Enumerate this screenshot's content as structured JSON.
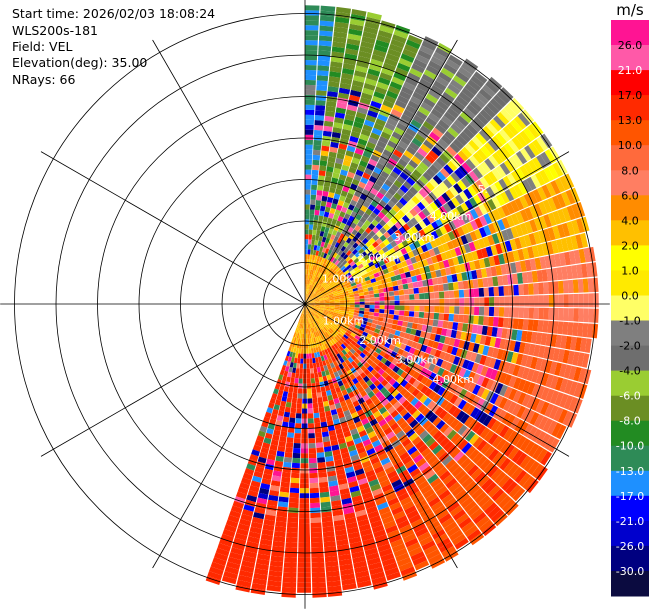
{
  "header": {
    "start_time": "Start time: 2026/02/03 18:08:24",
    "instrument": "WLS200s-181",
    "field": "Field: VEL",
    "elevation": "Elevation(deg): 35.00",
    "nrays": "NRays: 66"
  },
  "chart_data": {
    "type": "heatmap",
    "projection": "polar-ppi",
    "title": "",
    "field": "VEL",
    "elevation_deg": 35.0,
    "n_rays": 66,
    "range_rings_km": [
      1,
      2,
      3,
      4,
      5
    ],
    "range_ring_labels": [
      "1.00km",
      "2.00km",
      "3.00km",
      "4.00km"
    ],
    "range_ring_label_partial": "5.",
    "spokes_deg": [
      0,
      30,
      60,
      90,
      120,
      150,
      180,
      210,
      240,
      270,
      300,
      330
    ],
    "azimuth_coverage_deg": [
      0,
      200
    ],
    "max_range_km": 7.2,
    "dominant_velocity_by_sector": [
      {
        "azimuth": [
          0,
          5
        ],
        "value_ms": -13.0
      },
      {
        "azimuth": [
          5,
          25
        ],
        "value_ms": -7.0
      },
      {
        "azimuth": [
          25,
          45
        ],
        "value_ms": -3.0
      },
      {
        "azimuth": [
          45,
          65
        ],
        "value_ms": 0.0
      },
      {
        "azimuth": [
          65,
          80
        ],
        "value_ms": 3.5
      },
      {
        "azimuth": [
          80,
          95
        ],
        "value_ms": 7.0
      },
      {
        "azimuth": [
          95,
          120
        ],
        "value_ms": 9.5
      },
      {
        "azimuth": [
          120,
          160
        ],
        "value_ms": 12.5
      },
      {
        "azimuth": [
          160,
          200
        ],
        "value_ms": 15.0
      }
    ],
    "near_field_value_ms": 4.0,
    "colorbar": {
      "unit": "m/s",
      "tick_labels": [
        "26.0",
        "21.0",
        "17.0",
        "13.0",
        "10.0",
        "8.0",
        "6.0",
        "4.0",
        "2.0",
        "1.0",
        "0.0",
        "-1.0",
        "-2.0",
        "-4.0",
        "-6.0",
        "-8.0",
        "-10.0",
        "-13.0",
        "-17.0",
        "-21.0",
        "-26.0",
        "-30.0"
      ],
      "colors": [
        "#ff1493",
        "#ff59a8",
        "#ff0000",
        "#ff2a00",
        "#ff5500",
        "#ff6a3c",
        "#ff7e62",
        "#ff8c00",
        "#ffc000",
        "#ffff00",
        "#ffea00",
        "#ffff66",
        "#7f7f7f",
        "#6e6e6e",
        "#9acd32",
        "#6b8e23",
        "#228b22",
        "#2e8b57",
        "#1e90ff",
        "#0000ff",
        "#0000cd",
        "#000080",
        "#0b0b40"
      ]
    }
  }
}
